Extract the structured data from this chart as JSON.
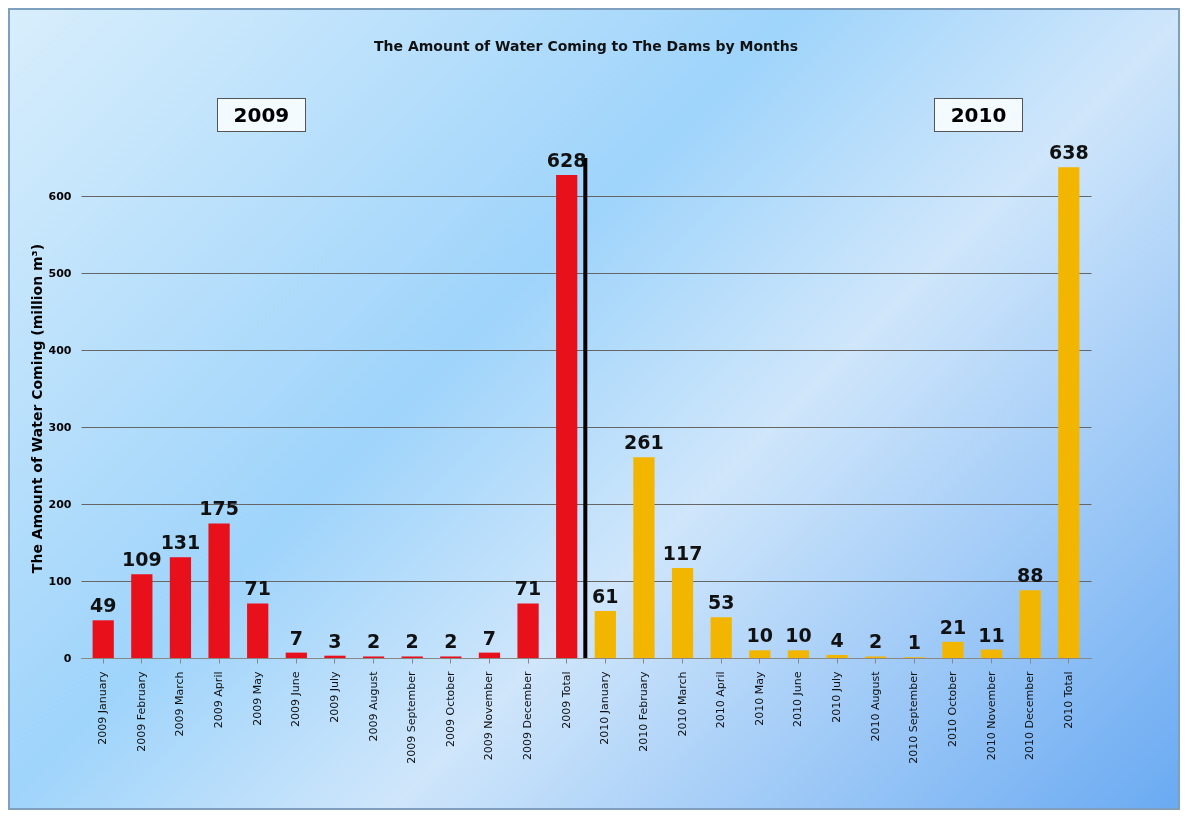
{
  "chart_data": {
    "type": "bar",
    "title": "The Amount of Water Coming to The Dams by Months",
    "ylabel": "The Amount of Water Coming (million m³)",
    "categories": [
      "2009 January",
      "2009 February",
      "2009 March",
      "2009 April",
      "2009 May",
      "2009 June",
      "2009 July",
      "2009 August",
      "2009 September",
      "2009 October",
      "2009 November",
      "2009 December",
      "2009 Total",
      "2010 January",
      "2010 February",
      "2010 March",
      "2010 April",
      "2010 May",
      "2010 June",
      "2010 July",
      "2010 August",
      "2010 September",
      "2010 October",
      "2010 November",
      "2010 December",
      "2010 Total"
    ],
    "values": [
      49,
      109,
      131,
      175,
      71,
      7,
      3,
      2,
      2,
      2,
      7,
      71,
      628,
      61,
      261,
      117,
      53,
      10,
      10,
      4,
      2,
      1,
      21,
      11,
      88,
      638
    ],
    "colors": [
      "#e8101a",
      "#e8101a",
      "#e8101a",
      "#e8101a",
      "#e8101a",
      "#e8101a",
      "#e8101a",
      "#e8101a",
      "#e8101a",
      "#e8101a",
      "#e8101a",
      "#e8101a",
      "#e8101a",
      "#f2b600",
      "#f2b600",
      "#f2b600",
      "#f2b600",
      "#f2b600",
      "#f2b600",
      "#f2b600",
      "#f2b600",
      "#f2b600",
      "#f2b600",
      "#f2b600",
      "#f2b600",
      "#f2b600"
    ],
    "ylim": [
      0,
      650
    ],
    "yticks": [
      0,
      100,
      200,
      300,
      400,
      500,
      600
    ],
    "grid": "y",
    "data_labels": true,
    "ref_lines": [
      {
        "axis": "x",
        "value": "2009 Total",
        "color": "#000000"
      }
    ],
    "annotations": [
      "2009",
      "2010"
    ]
  }
}
